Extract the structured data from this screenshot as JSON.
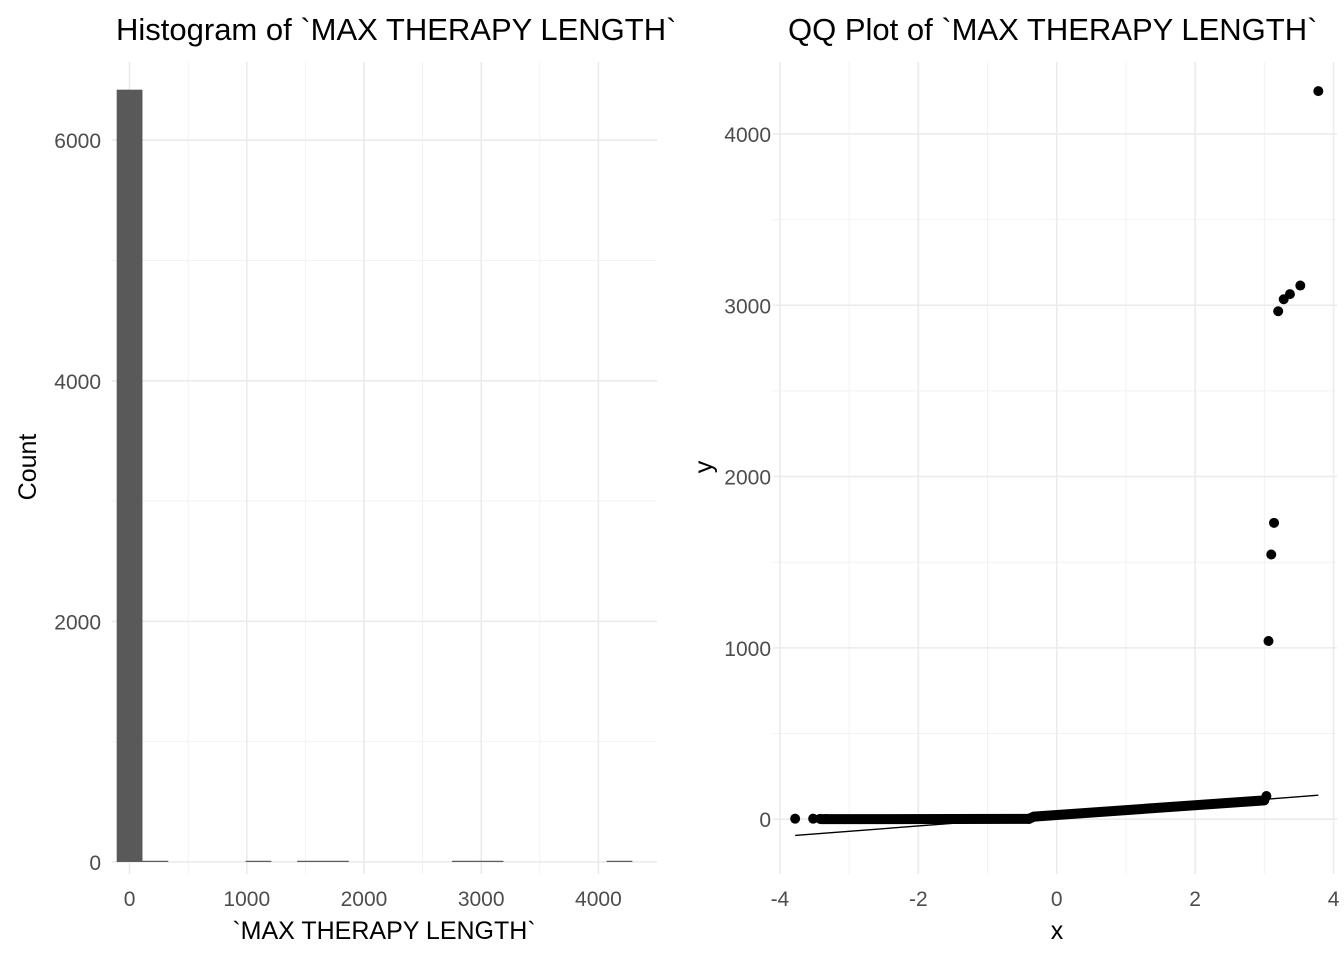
{
  "chart_data": [
    {
      "type": "bar",
      "title": "Histogram of `MAX THERAPY LENGTH`",
      "xlabel": "`MAX THERAPY LENGTH`",
      "ylabel": "Count",
      "xlim": [
        -150,
        4500
      ],
      "ylim": [
        -100,
        6650
      ],
      "x_ticks": [
        0,
        1000,
        2000,
        3000,
        4000
      ],
      "x_tick_labels": [
        "0",
        "1000",
        "2000",
        "3000",
        "4000"
      ],
      "y_ticks": [
        0,
        2000,
        4000,
        6000
      ],
      "y_tick_labels": [
        "0",
        "2000",
        "4000",
        "6000"
      ],
      "bar_width": 220,
      "bars": [
        {
          "x": 0,
          "count": 6420
        },
        {
          "x": 220,
          "count": 8
        },
        {
          "x": 1100,
          "count": 2
        },
        {
          "x": 1540,
          "count": 2
        },
        {
          "x": 1760,
          "count": 3
        },
        {
          "x": 2860,
          "count": 1
        },
        {
          "x": 3080,
          "count": 3
        },
        {
          "x": 4180,
          "count": 1
        }
      ],
      "bar_color": "#595959",
      "grid": true
    },
    {
      "type": "scatter",
      "title": "QQ Plot of `MAX THERAPY LENGTH`",
      "xlabel": "x",
      "ylabel": "y",
      "xlim": [
        -4.1,
        4.05
      ],
      "ylim": [
        -320,
        4420
      ],
      "x_ticks": [
        -4,
        -2,
        0,
        2,
        4
      ],
      "x_tick_labels": [
        "-4",
        "-2",
        "0",
        "2",
        "4"
      ],
      "y_ticks": [
        0,
        1000,
        2000,
        3000,
        4000
      ],
      "y_tick_labels": [
        "0",
        "1000",
        "2000",
        "3000",
        "4000"
      ],
      "qq_line": {
        "x": [
          -3.78,
          3.78
        ],
        "y": [
          -95,
          140
        ]
      },
      "bulk_segments": [
        {
          "x": [
            -3.4,
            -0.4
          ],
          "y": [
            0,
            2
          ]
        },
        {
          "x": [
            -0.4,
            -0.33
          ],
          "y": [
            2,
            15
          ]
        },
        {
          "x": [
            -0.33,
            3.0
          ],
          "y": [
            15,
            110
          ]
        }
      ],
      "points": [
        {
          "x": -3.78,
          "y": 3
        },
        {
          "x": -3.52,
          "y": 3
        },
        {
          "x": -3.42,
          "y": 2
        },
        {
          "x": -3.33,
          "y": 1
        },
        {
          "x": 3.0,
          "y": 115
        },
        {
          "x": 3.03,
          "y": 135
        },
        {
          "x": 3.06,
          "y": 1040
        },
        {
          "x": 3.1,
          "y": 1545
        },
        {
          "x": 3.14,
          "y": 1730
        },
        {
          "x": 3.2,
          "y": 2965
        },
        {
          "x": 3.28,
          "y": 3035
        },
        {
          "x": 3.37,
          "y": 3065
        },
        {
          "x": 3.52,
          "y": 3115
        },
        {
          "x": 3.78,
          "y": 4250
        }
      ],
      "point_color": "#000000",
      "grid": true
    }
  ]
}
